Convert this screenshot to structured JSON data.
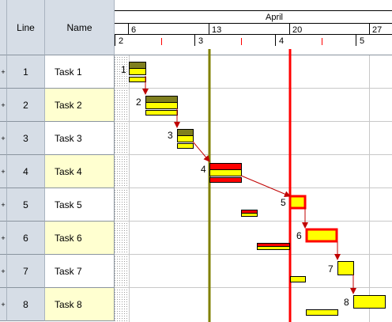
{
  "grid": {
    "headers": {
      "line": "Line",
      "name": "Name"
    },
    "expand_glyph": "+",
    "rows": [
      {
        "line": "1",
        "name": "Task 1"
      },
      {
        "line": "2",
        "name": "Task 2"
      },
      {
        "line": "3",
        "name": "Task 3"
      },
      {
        "line": "4",
        "name": "Task 4"
      },
      {
        "line": "5",
        "name": "Task 5"
      },
      {
        "line": "6",
        "name": "Task 6"
      },
      {
        "line": "7",
        "name": "Task 7"
      },
      {
        "line": "8",
        "name": "Task 8"
      }
    ]
  },
  "timeline": {
    "month": "April",
    "week_labels": [
      "6",
      "13",
      "20",
      "27"
    ],
    "day_labels": [
      "2",
      "3",
      "4",
      "5"
    ]
  },
  "bar_labels": [
    "1",
    "2",
    "3",
    "4",
    "5",
    "6",
    "7",
    "8"
  ],
  "colors": {
    "bar_olive": "#7f7f1e",
    "bar_yellow": "#ffff00",
    "bar_red": "#ff0000",
    "today_line": "#ff0000",
    "marker_line": "#808000",
    "link_arrow": "#c00000",
    "header_bg": "#d6dde6",
    "alt_row_bg": "#ffffd0"
  }
}
